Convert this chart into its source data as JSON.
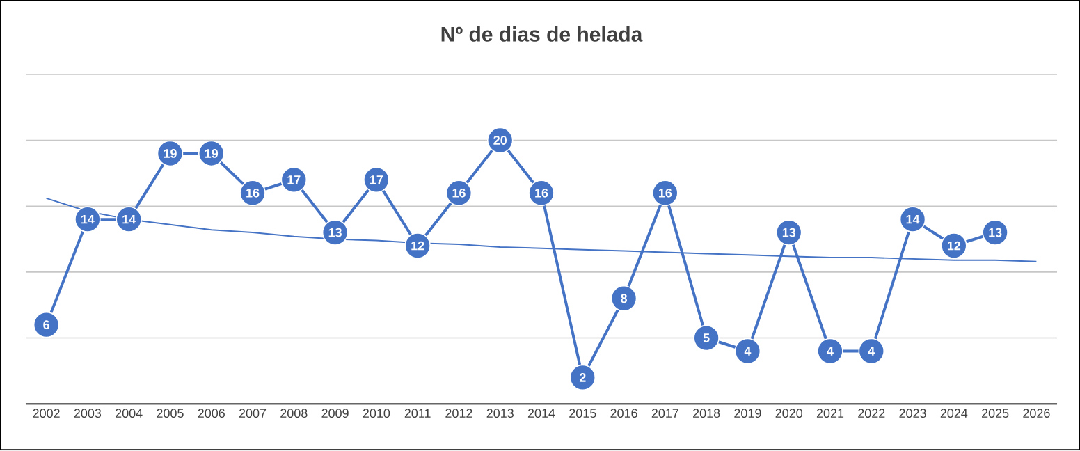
{
  "chart_data": {
    "type": "line",
    "title": "Nº de dias de helada",
    "categories": [
      "2002",
      "2003",
      "2004",
      "2005",
      "2006",
      "2007",
      "2008",
      "2009",
      "2010",
      "2011",
      "2012",
      "2013",
      "2014",
      "2015",
      "2016",
      "2017",
      "2018",
      "2019",
      "2020",
      "2021",
      "2022",
      "2023",
      "2024",
      "2025",
      "2026"
    ],
    "series": [
      {
        "color": "#4472c4",
        "marker": "circle",
        "data_labels": true,
        "values": [
          6,
          14,
          14,
          19,
          19,
          16,
          17,
          13,
          17,
          12,
          16,
          20,
          16,
          2,
          8,
          16,
          5,
          4,
          13,
          4,
          4,
          14,
          12,
          13,
          null
        ]
      },
      {
        "color": "#4472c4",
        "marker": "none",
        "values": [
          15.6,
          14.6,
          14.0,
          13.6,
          13.2,
          13.0,
          12.7,
          12.5,
          12.4,
          12.2,
          12.1,
          11.9,
          11.8,
          11.7,
          11.6,
          11.5,
          11.4,
          11.3,
          11.2,
          11.1,
          11.1,
          11.0,
          10.9,
          10.9,
          10.8
        ]
      }
    ],
    "ylim": [
      0,
      25
    ],
    "tick_labels": "x",
    "grid": "y"
  }
}
